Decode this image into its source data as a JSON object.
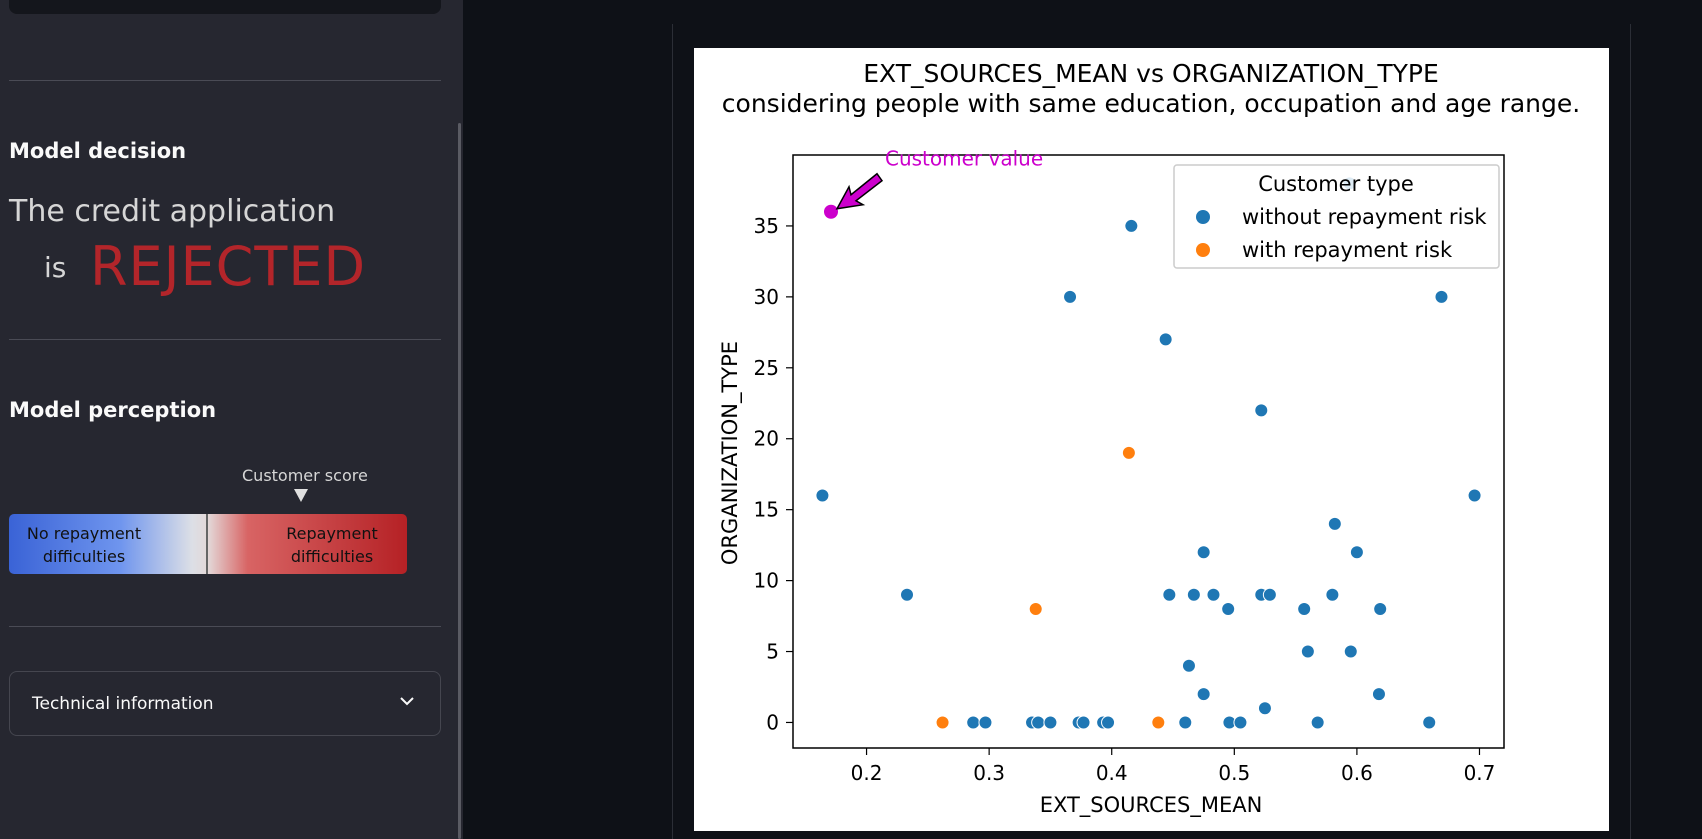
{
  "sidebar": {
    "model_decision_heading": "Model decision",
    "credit_text": "The credit application",
    "is_text": "is",
    "decision": "REJECTED",
    "model_perception_heading": "Model perception",
    "score_label": "Customer score",
    "gauge": {
      "left_label_line1": "No repayment",
      "left_label_line2": "difficulties",
      "right_label_line1": "Repayment",
      "right_label_line2": "difficulties"
    },
    "technical_info_label": "Technical information",
    "chevron_icon": "chevron-down-icon"
  },
  "colors": {
    "rejected": "#b3252a",
    "without_risk": "#1f77b4",
    "with_risk": "#ff7f0e",
    "customer": "#cc00cc"
  },
  "chart_data": {
    "type": "scatter",
    "title": "EXT_SOURCES_MEAN vs ORGANIZATION_TYPE",
    "subtitle": "considering people with same education, occupation and age range.",
    "xlabel": "EXT_SOURCES_MEAN",
    "ylabel": "ORGANIZATION_TYPE",
    "xlim": [
      0.14,
      0.72
    ],
    "ylim": [
      -1.8,
      40
    ],
    "xticks": [
      0.2,
      0.3,
      0.4,
      0.5,
      0.6,
      0.7
    ],
    "xtick_labels": [
      "0.2",
      "0.3",
      "0.4",
      "0.5",
      "0.6",
      "0.7"
    ],
    "yticks": [
      0,
      5,
      10,
      15,
      20,
      25,
      30,
      35
    ],
    "ytick_labels": [
      "0",
      "5",
      "10",
      "15",
      "20",
      "25",
      "30",
      "35"
    ],
    "legend_title": "Customer type",
    "legend_position": "top-right",
    "annotation": "Customer value",
    "customer_point": {
      "x": 0.171,
      "y": 36
    },
    "series": [
      {
        "name": "without repayment risk",
        "color": "#1f77b4",
        "points": [
          [
            0.164,
            16
          ],
          [
            0.233,
            9
          ],
          [
            0.366,
            30
          ],
          [
            0.416,
            35
          ],
          [
            0.444,
            27
          ],
          [
            0.522,
            22
          ],
          [
            0.669,
            30
          ],
          [
            0.696,
            16
          ],
          [
            0.582,
            14
          ],
          [
            0.6,
            12
          ],
          [
            0.475,
            12
          ],
          [
            0.447,
            9
          ],
          [
            0.467,
            9
          ],
          [
            0.483,
            9
          ],
          [
            0.522,
            9
          ],
          [
            0.529,
            9
          ],
          [
            0.58,
            9
          ],
          [
            0.495,
            8
          ],
          [
            0.557,
            8
          ],
          [
            0.619,
            8
          ],
          [
            0.463,
            4
          ],
          [
            0.56,
            5
          ],
          [
            0.595,
            5
          ],
          [
            0.475,
            2
          ],
          [
            0.618,
            2
          ],
          [
            0.525,
            1
          ],
          [
            0.287,
            0
          ],
          [
            0.297,
            0
          ],
          [
            0.335,
            0
          ],
          [
            0.34,
            0
          ],
          [
            0.35,
            0
          ],
          [
            0.373,
            0
          ],
          [
            0.377,
            0
          ],
          [
            0.393,
            0
          ],
          [
            0.397,
            0
          ],
          [
            0.46,
            0
          ],
          [
            0.496,
            0
          ],
          [
            0.505,
            0
          ],
          [
            0.568,
            0
          ],
          [
            0.659,
            0
          ],
          [
            0.594,
            38
          ]
        ]
      },
      {
        "name": "with repayment risk",
        "color": "#ff7f0e",
        "points": [
          [
            0.262,
            0
          ],
          [
            0.338,
            8
          ],
          [
            0.414,
            19
          ],
          [
            0.438,
            0
          ]
        ]
      }
    ]
  }
}
